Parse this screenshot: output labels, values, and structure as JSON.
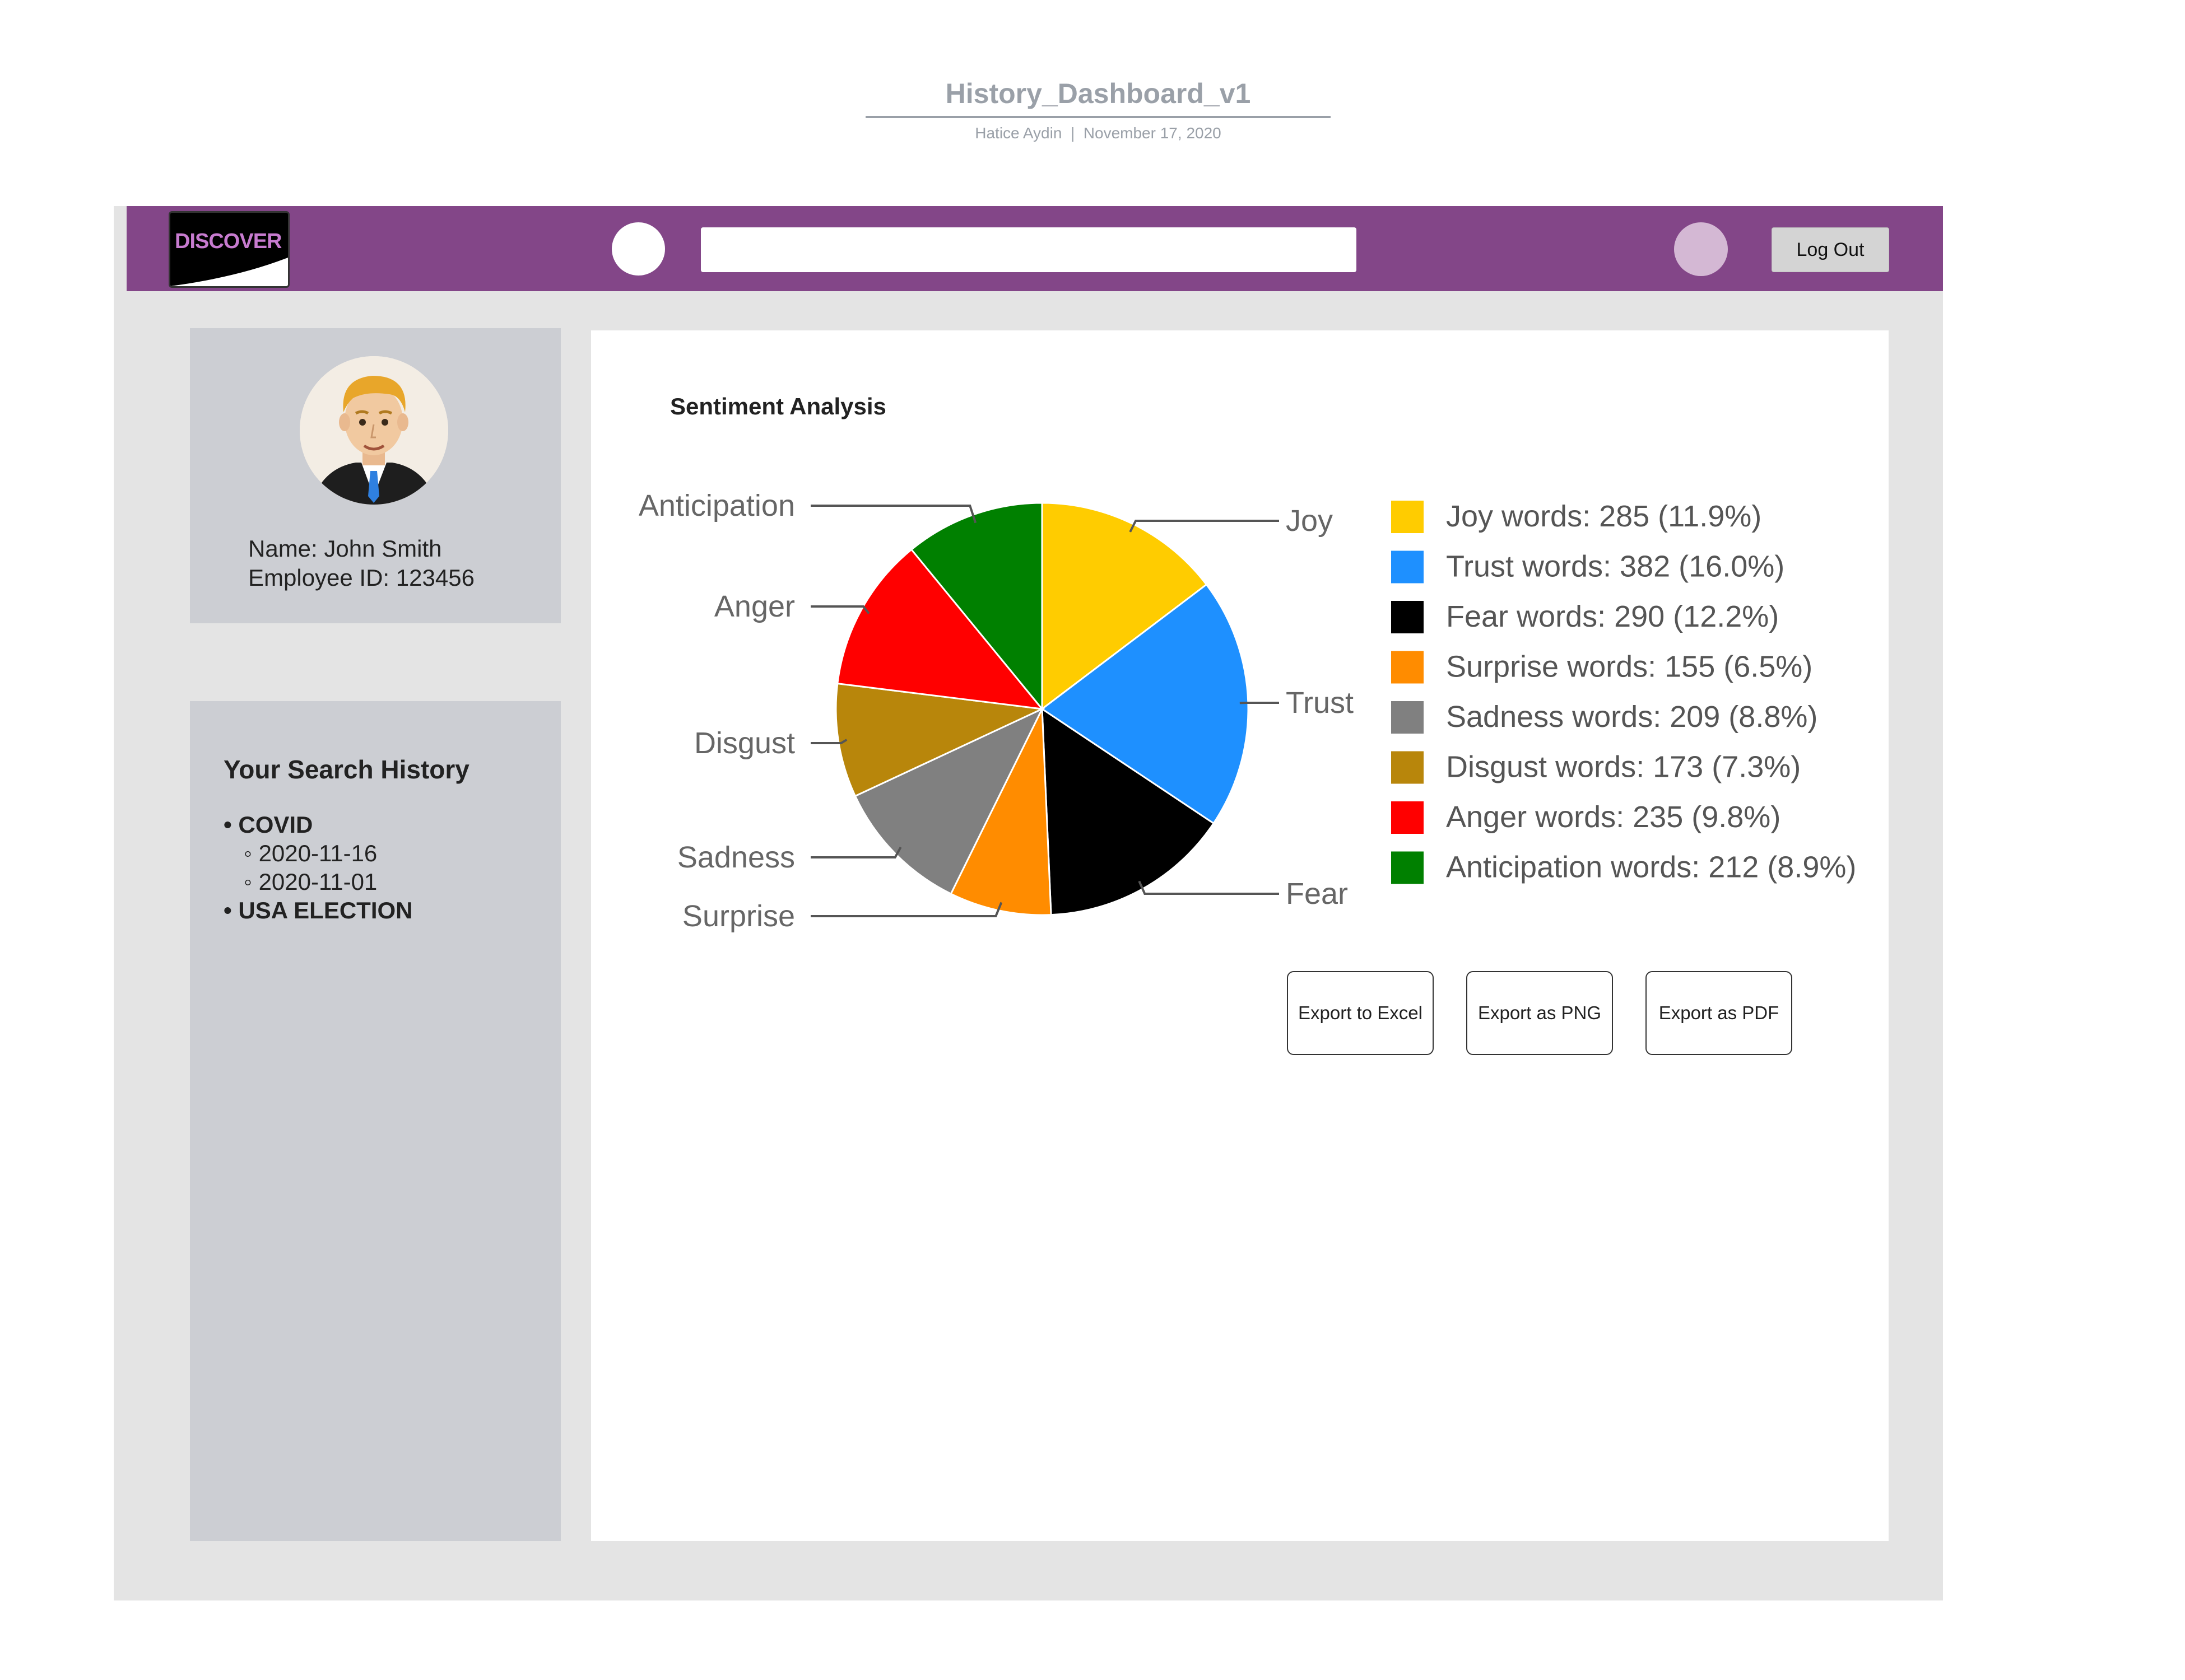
{
  "document": {
    "title": "History_Dashboard_v1",
    "author": "Hatice Aydin",
    "date": "November 17, 2020"
  },
  "header": {
    "logo_text": "DISCOVER",
    "logout_label": "Log Out",
    "search_value": "",
    "colors": {
      "bar": "#834688"
    }
  },
  "profile": {
    "name_line": "Name: John Smith",
    "id_line": "Employee ID: 123456"
  },
  "history": {
    "title": "Your Search History",
    "items": [
      {
        "label": "COVID",
        "dates": [
          "2020-11-16",
          "2020-11-01"
        ]
      },
      {
        "label": "USA ELECTION",
        "dates": []
      }
    ]
  },
  "main": {
    "chart_title": "Sentiment Analysis",
    "export_excel": "Export to Excel",
    "export_png": "Export as PNG",
    "export_pdf": "Export as PDF"
  },
  "chart_data": {
    "type": "pie",
    "title": "Sentiment Analysis",
    "legend_position": "right",
    "slices": [
      {
        "label": "Joy",
        "value": 285,
        "percent": 11.9,
        "color": "#ffcc00",
        "legend": "Joy words: 285 (11.9%)"
      },
      {
        "label": "Trust",
        "value": 382,
        "percent": 16.0,
        "color": "#1e90ff",
        "legend": "Trust words: 382 (16.0%)"
      },
      {
        "label": "Fear",
        "value": 290,
        "percent": 12.2,
        "color": "#000000",
        "legend": "Fear words: 290 (12.2%)"
      },
      {
        "label": "Surprise",
        "value": 155,
        "percent": 6.5,
        "color": "#ff8c00",
        "legend": "Surprise words: 155 (6.5%)"
      },
      {
        "label": "Sadness",
        "value": 209,
        "percent": 8.8,
        "color": "#808080",
        "legend": "Sadness words: 209 (8.8%)"
      },
      {
        "label": "Disgust",
        "value": 173,
        "percent": 7.3,
        "color": "#b8860b",
        "legend": "Disgust words: 173 (7.3%)"
      },
      {
        "label": "Anger",
        "value": 235,
        "percent": 9.8,
        "color": "#ff0000",
        "legend": "Anger words: 235 (9.8%)"
      },
      {
        "label": "Anticipation",
        "value": 212,
        "percent": 8.9,
        "color": "#008000",
        "legend": "Anticipation words: 212 (8.9%)"
      }
    ]
  }
}
